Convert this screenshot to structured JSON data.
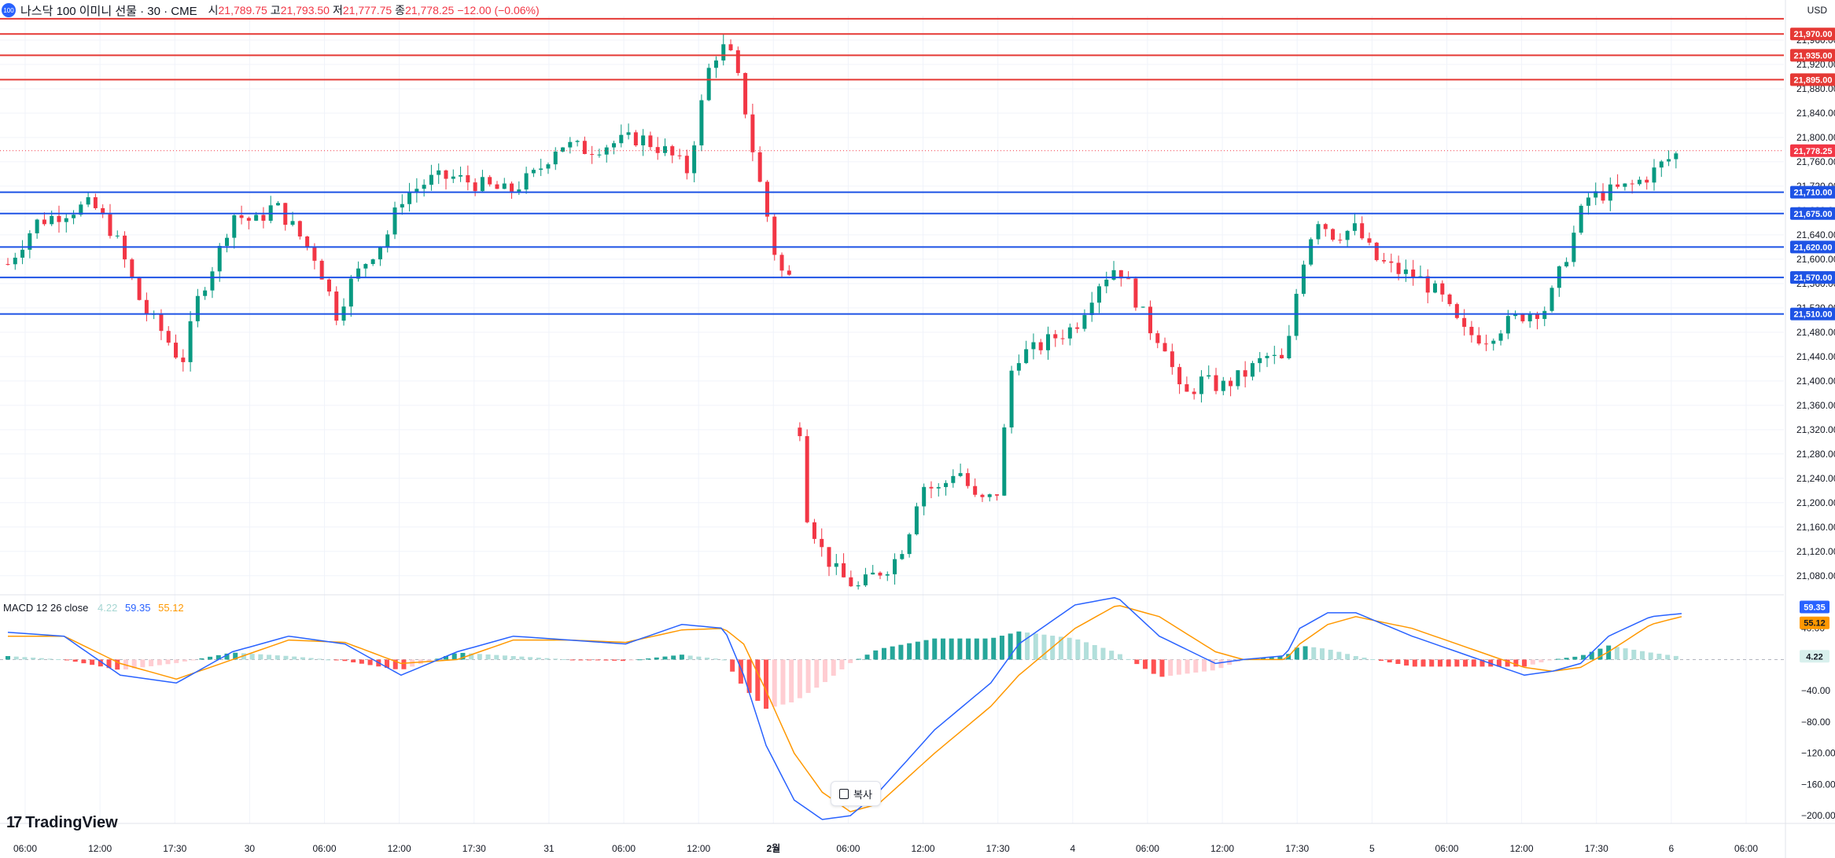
{
  "header": {
    "badge": "100",
    "title": "나스닥 100 이미니 선물 · 30 · CME",
    "open_label": "시",
    "open": "21,789.75",
    "high_label": "고",
    "high": "21,793.50",
    "low_label": "저",
    "low": "21,777.75",
    "close_label": "종",
    "close": "21,778.25",
    "change": "−12.00 (−0.06%)"
  },
  "currency": "USD",
  "macd_header": {
    "label": "MACD 12 26 close",
    "hist": "4.22",
    "macd": "59.35",
    "signal": "55.12"
  },
  "copy_button": "복사",
  "logo": "TradingView",
  "colors": {
    "up": "#089981",
    "down": "#f23645",
    "resistance": "#e53935",
    "support": "#1e53e5",
    "macd_line": "#2962ff",
    "signal_line": "#ff9800",
    "hist_up_strong": "#26a69a",
    "hist_up_weak": "#b2dfdb",
    "hist_down_strong": "#ff5252",
    "hist_down_weak": "#ffcdd2"
  },
  "chart_data": [
    {
      "type": "candlestick",
      "title": "나스닥 100 이미니 선물 · 30 · CME",
      "ylim": [
        21050,
        22000
      ],
      "y_ticks": [
        21080,
        21120,
        21160,
        21200,
        21240,
        21280,
        21320,
        21360,
        21400,
        21440,
        21480,
        21520,
        21560,
        21600,
        21640,
        21680,
        21720,
        21760,
        21800,
        21840,
        21880,
        21920,
        21960
      ],
      "x_ticks": [
        "06:00",
        "12:00",
        "17:30",
        "30",
        "06:00",
        "12:00",
        "17:30",
        "31",
        "06:00",
        "12:00",
        "2월",
        "06:00",
        "12:00",
        "17:30",
        "4",
        "06:00",
        "12:00",
        "17:30",
        "5",
        "06:00",
        "12:00",
        "17:30",
        "6",
        "06:00"
      ],
      "current_price": 21778.25,
      "resistance_levels": [
        21970.0,
        21935.0,
        21895.0
      ],
      "top_line": 21995,
      "support_levels": [
        21710.0,
        21675.0,
        21620.0,
        21570.0,
        21510.0
      ],
      "price_path": [
        [
          0,
          21592
        ],
        [
          10,
          21660
        ],
        [
          22,
          21680
        ],
        [
          30,
          21690
        ],
        [
          38,
          21640
        ],
        [
          48,
          21520
        ],
        [
          55,
          21480
        ],
        [
          62,
          21430
        ],
        [
          68,
          21540
        ],
        [
          75,
          21610
        ],
        [
          80,
          21675
        ],
        [
          88,
          21660
        ],
        [
          95,
          21690
        ],
        [
          102,
          21650
        ],
        [
          110,
          21600
        ],
        [
          117,
          21510
        ],
        [
          122,
          21560
        ],
        [
          128,
          21600
        ],
        [
          135,
          21640
        ],
        [
          140,
          21700
        ],
        [
          150,
          21730
        ],
        [
          158,
          21735
        ],
        [
          170,
          21720
        ],
        [
          178,
          21710
        ],
        [
          188,
          21740
        ],
        [
          196,
          21790
        ],
        [
          206,
          21780
        ],
        [
          215,
          21790
        ],
        [
          225,
          21800
        ],
        [
          235,
          21775
        ],
        [
          242,
          21745
        ],
        [
          250,
          21920
        ],
        [
          254,
          21950
        ],
        [
          258,
          21930
        ],
        [
          262,
          21860
        ],
        [
          266,
          21760
        ],
        [
          270,
          21680
        ],
        [
          274,
          21590
        ],
        [
          277,
          21570
        ],
        [
          280,
          21570
        ]
      ],
      "gap_path": [
        [
          280,
          21570
        ],
        [
          283,
          21200
        ],
        [
          290,
          21120
        ],
        [
          296,
          21080
        ],
        [
          303,
          21060
        ],
        [
          308,
          21080
        ],
        [
          315,
          21100
        ],
        [
          320,
          21140
        ],
        [
          325,
          21230
        ],
        [
          332,
          21220
        ],
        [
          338,
          21260
        ],
        [
          345,
          21200
        ],
        [
          352,
          21210
        ],
        [
          358,
          21440
        ],
        [
          365,
          21450
        ],
        [
          372,
          21470
        ],
        [
          380,
          21490
        ],
        [
          388,
          21560
        ],
        [
          395,
          21590
        ],
        [
          400,
          21550
        ],
        [
          406,
          21490
        ],
        [
          412,
          21460
        ],
        [
          418,
          21370
        ],
        [
          425,
          21400
        ],
        [
          432,
          21390
        ],
        [
          440,
          21410
        ],
        [
          448,
          21440
        ],
        [
          455,
          21430
        ],
        [
          460,
          21580
        ],
        [
          466,
          21670
        ],
        [
          472,
          21640
        ],
        [
          480,
          21650
        ],
        [
          487,
          21600
        ],
        [
          495,
          21580
        ],
        [
          502,
          21570
        ],
        [
          510,
          21540
        ],
        [
          518,
          21480
        ],
        [
          526,
          21470
        ],
        [
          532,
          21490
        ],
        [
          540,
          21510
        ],
        [
          548,
          21520
        ],
        [
          556,
          21620
        ],
        [
          562,
          21700
        ],
        [
          570,
          21710
        ],
        [
          578,
          21720
        ],
        [
          585,
          21740
        ],
        [
          590,
          21760
        ],
        [
          596,
          21778
        ]
      ]
    },
    {
      "type": "line",
      "title": "MACD 12 26 close",
      "ylim": [
        -210,
        80
      ],
      "y_ticks": [
        40,
        -40,
        -80,
        -120,
        -160,
        -200
      ],
      "hist_last": 4.22,
      "macd_last": 59.35,
      "signal_last": 55.12,
      "macd_path": [
        [
          0,
          35
        ],
        [
          20,
          30
        ],
        [
          40,
          -20
        ],
        [
          60,
          -30
        ],
        [
          80,
          10
        ],
        [
          100,
          30
        ],
        [
          120,
          20
        ],
        [
          140,
          -20
        ],
        [
          160,
          10
        ],
        [
          180,
          30
        ],
        [
          200,
          25
        ],
        [
          220,
          20
        ],
        [
          240,
          45
        ],
        [
          255,
          40
        ],
        [
          262,
          -20
        ],
        [
          270,
          -110
        ],
        [
          280,
          -180
        ],
        [
          290,
          -205
        ],
        [
          300,
          -200
        ],
        [
          310,
          -170
        ],
        [
          330,
          -90
        ],
        [
          350,
          -30
        ],
        [
          360,
          20
        ],
        [
          380,
          70
        ],
        [
          395,
          80
        ],
        [
          410,
          30
        ],
        [
          430,
          -5
        ],
        [
          440,
          0
        ],
        [
          455,
          5
        ],
        [
          460,
          40
        ],
        [
          470,
          60
        ],
        [
          480,
          60
        ],
        [
          500,
          30
        ],
        [
          520,
          5
        ],
        [
          540,
          -20
        ],
        [
          550,
          -15
        ],
        [
          560,
          -5
        ],
        [
          570,
          30
        ],
        [
          585,
          55
        ],
        [
          596,
          59
        ]
      ],
      "signal_path": [
        [
          0,
          30
        ],
        [
          20,
          30
        ],
        [
          40,
          -5
        ],
        [
          60,
          -25
        ],
        [
          80,
          0
        ],
        [
          100,
          25
        ],
        [
          120,
          22
        ],
        [
          140,
          -5
        ],
        [
          160,
          0
        ],
        [
          180,
          25
        ],
        [
          200,
          25
        ],
        [
          220,
          22
        ],
        [
          240,
          38
        ],
        [
          255,
          40
        ],
        [
          262,
          20
        ],
        [
          270,
          -40
        ],
        [
          280,
          -120
        ],
        [
          290,
          -170
        ],
        [
          300,
          -195
        ],
        [
          310,
          -185
        ],
        [
          330,
          -120
        ],
        [
          350,
          -60
        ],
        [
          360,
          -20
        ],
        [
          380,
          40
        ],
        [
          395,
          70
        ],
        [
          410,
          55
        ],
        [
          430,
          10
        ],
        [
          440,
          0
        ],
        [
          455,
          0
        ],
        [
          460,
          20
        ],
        [
          470,
          45
        ],
        [
          480,
          55
        ],
        [
          500,
          40
        ],
        [
          520,
          15
        ],
        [
          540,
          -10
        ],
        [
          550,
          -15
        ],
        [
          560,
          -10
        ],
        [
          570,
          10
        ],
        [
          585,
          45
        ],
        [
          596,
          55
        ]
      ]
    }
  ]
}
